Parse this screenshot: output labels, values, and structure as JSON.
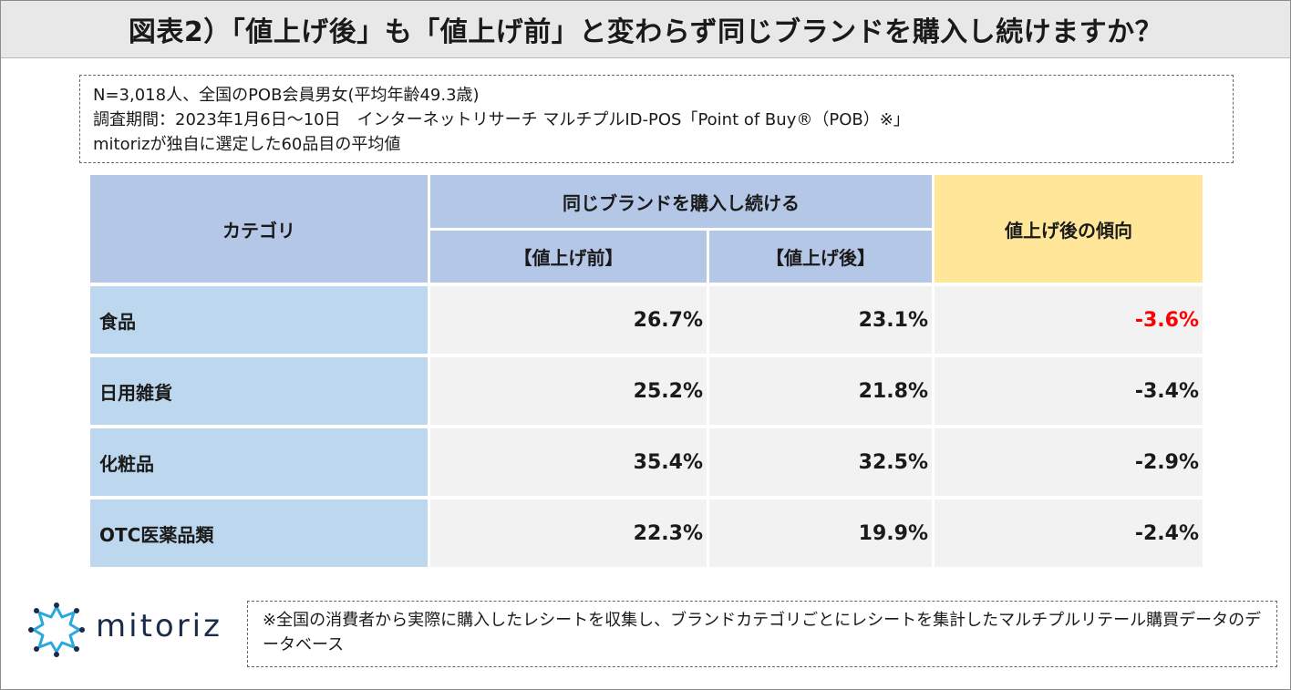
{
  "title": "図表2）「値上げ後」も「値上げ前」と変わらず同じブランドを購入し続けますか？",
  "note_lines": [
    "N=3,018人、全国のPOB会員男女(平均年齢49.3歳)",
    "調査期間：2023年1月6日〜10日　インターネットリサーチ マルチプルID-POS「Point of Buy®（POB）※」",
    "mitorizが独自に選定した60品目の平均値"
  ],
  "table": {
    "header_category": "カテゴリ",
    "header_group": "同じブランドを購入し続ける",
    "header_before": "【値上げ前】",
    "header_after": "【値上げ後】",
    "header_trend": "値上げ後の傾向",
    "rows": [
      {
        "category": "食品",
        "before": "26.7%",
        "after": "23.1%",
        "trend": "-3.6%",
        "highlight": true
      },
      {
        "category": "日用雑貨",
        "before": "25.2%",
        "after": "21.8%",
        "trend": "-3.4%",
        "highlight": false
      },
      {
        "category": "化粧品",
        "before": "35.4%",
        "after": "32.5%",
        "trend": "-2.9%",
        "highlight": false
      },
      {
        "category": "OTC医薬品類",
        "before": "22.3%",
        "after": "19.9%",
        "trend": "-2.4%",
        "highlight": false
      }
    ]
  },
  "chart_data": {
    "type": "table",
    "title": "図表2）「値上げ後」も「値上げ前」と変わらず同じブランドを購入し続けますか？",
    "columns": [
      "カテゴリ",
      "【値上げ前】",
      "【値上げ後】",
      "値上げ後の傾向"
    ],
    "categories": [
      "食品",
      "日用雑貨",
      "化粧品",
      "OTC医薬品類"
    ],
    "series": [
      {
        "name": "【値上げ前】",
        "values": [
          26.7,
          25.2,
          35.4,
          22.3
        ]
      },
      {
        "name": "【値上げ後】",
        "values": [
          23.1,
          21.8,
          32.5,
          19.9
        ]
      },
      {
        "name": "値上げ後の傾向",
        "values": [
          -3.6,
          -3.4,
          -2.9,
          -2.4
        ]
      }
    ],
    "unit": "%"
  },
  "footer_note": "※全国の消費者から実際に購入したレシートを収集し、ブランドカテゴリごとにレシートを集計したマルチプルリテール購買データのデータベース",
  "logo": {
    "text": "mitoriz",
    "icon": "mitoriz-logo-icon"
  },
  "colors": {
    "header_blue": "#b4c7e7",
    "header_yellow": "#ffe699",
    "category_blue": "#bdd7ee",
    "value_gray": "#f2f2f2",
    "highlight_red": "#ff0000",
    "title_bg": "#e8e8e8"
  }
}
